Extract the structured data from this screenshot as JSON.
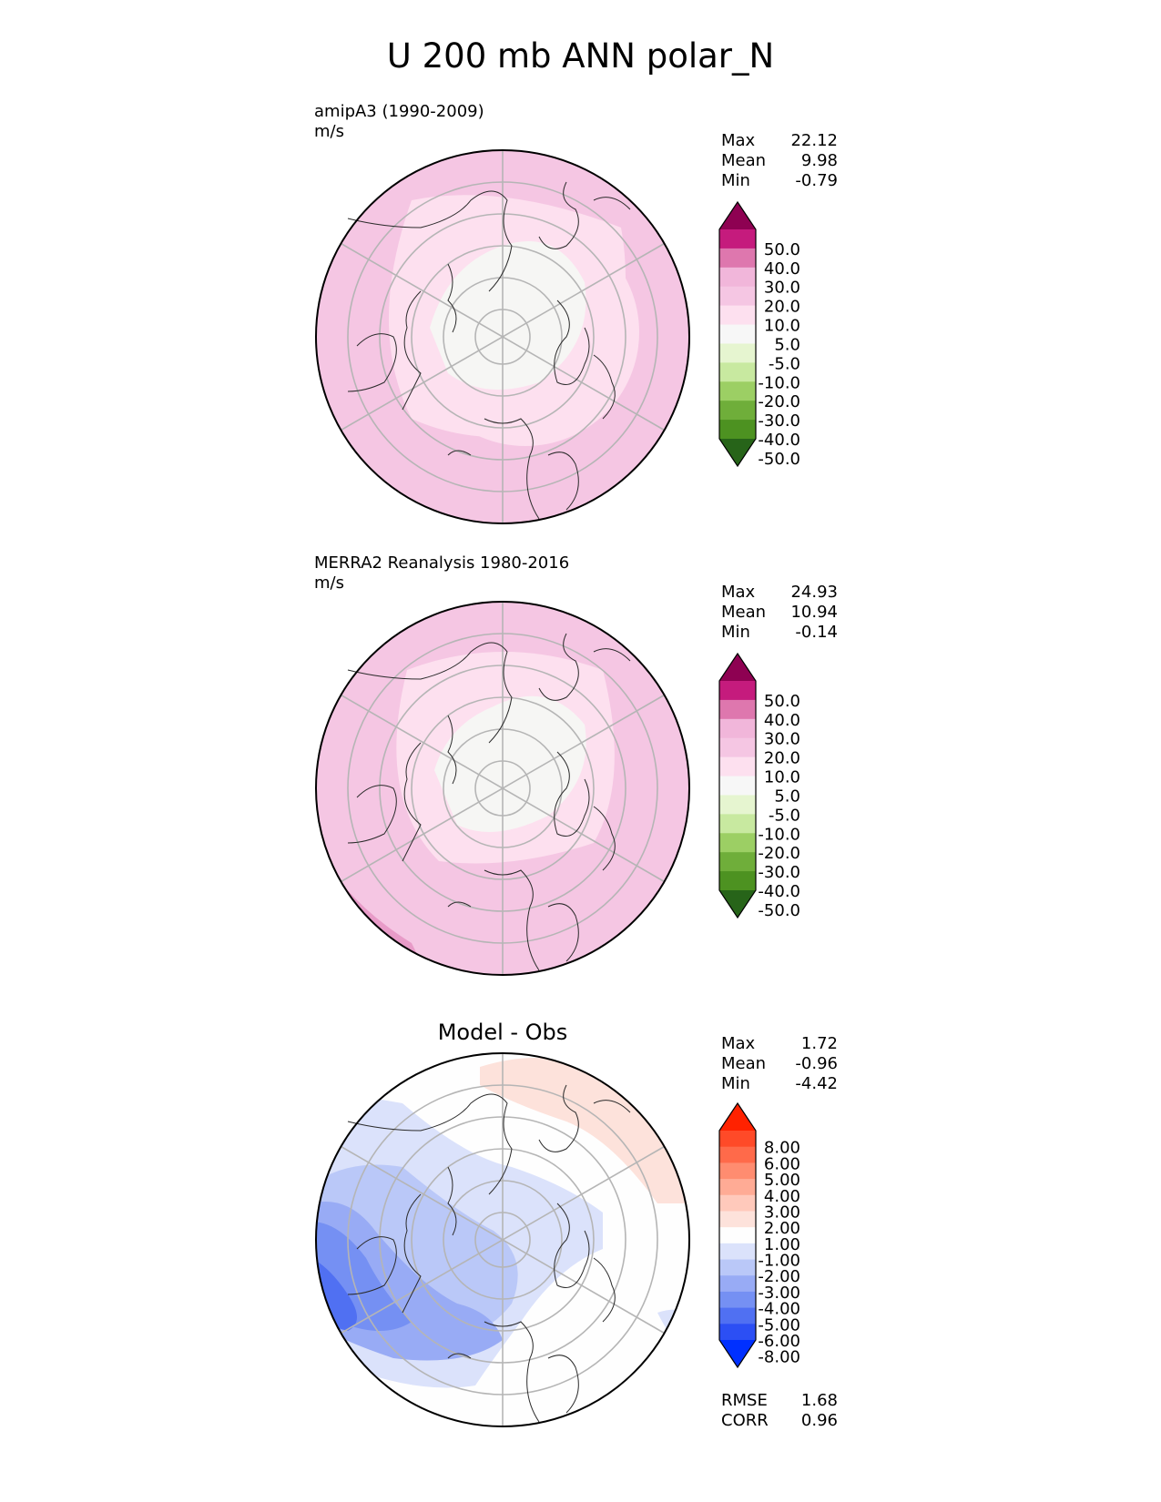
{
  "title": "U 200 mb ANN polar_N",
  "panels": [
    {
      "id": "model",
      "label_line1": "amipA3 (1990-2009)",
      "label_line2": "m/s",
      "stats": [
        {
          "name": "Max",
          "value": "22.12"
        },
        {
          "name": "Mean",
          "value": "9.98"
        },
        {
          "name": "Min",
          "value": "-0.79"
        }
      ],
      "colorbar": {
        "tick_labels": [
          "50.0",
          "40.0",
          "30.0",
          "20.0",
          "10.0",
          "5.0",
          "-5.0",
          "-10.0",
          "-20.0",
          "-30.0",
          "-40.0",
          "-50.0"
        ],
        "colors_top_to_bottom": [
          "#8e0152",
          "#c51b7d",
          "#de77ae",
          "#f1b6da",
          "#f5c6e3",
          "#fde0ef",
          "#f7f7f7",
          "#e6f5d0",
          "#c8e9a0",
          "#9ccf64",
          "#6fae3a",
          "#4d9221",
          "#276419"
        ]
      }
    },
    {
      "id": "obs",
      "label_line1": "MERRA2 Reanalysis 1980-2016",
      "label_line2": "m/s",
      "stats": [
        {
          "name": "Max",
          "value": "24.93"
        },
        {
          "name": "Mean",
          "value": "10.94"
        },
        {
          "name": "Min",
          "value": "-0.14"
        }
      ],
      "colorbar": {
        "tick_labels": [
          "50.0",
          "40.0",
          "30.0",
          "20.0",
          "10.0",
          "5.0",
          "-5.0",
          "-10.0",
          "-20.0",
          "-30.0",
          "-40.0",
          "-50.0"
        ],
        "colors_top_to_bottom": [
          "#8e0152",
          "#c51b7d",
          "#de77ae",
          "#f1b6da",
          "#f5c6e3",
          "#fde0ef",
          "#f7f7f7",
          "#e6f5d0",
          "#c8e9a0",
          "#9ccf64",
          "#6fae3a",
          "#4d9221",
          "#276419"
        ]
      }
    },
    {
      "id": "diff",
      "title": "Model - Obs",
      "stats": [
        {
          "name": "Max",
          "value": "1.72"
        },
        {
          "name": "Mean",
          "value": "-0.96"
        },
        {
          "name": "Min",
          "value": "-4.42"
        }
      ],
      "metrics": [
        {
          "name": "RMSE",
          "value": "1.68"
        },
        {
          "name": "CORR",
          "value": "0.96"
        }
      ],
      "colorbar": {
        "tick_labels": [
          "8.00",
          "6.00",
          "5.00",
          "4.00",
          "3.00",
          "2.00",
          "1.00",
          "-1.00",
          "-2.00",
          "-3.00",
          "-4.00",
          "-5.00",
          "-6.00",
          "-8.00"
        ],
        "colors_top_to_bottom": [
          "#ff2200",
          "#ff4a28",
          "#ff6a4a",
          "#ff8c70",
          "#ffab95",
          "#ffc9bb",
          "#fde2db",
          "#fefefe",
          "#dbe2fb",
          "#bac8f8",
          "#98abf5",
          "#7590f3",
          "#5070f2",
          "#2c4ff4",
          "#0030ff"
        ]
      }
    }
  ]
}
